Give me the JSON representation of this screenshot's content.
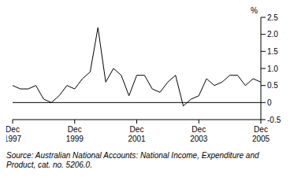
{
  "chart_data": {
    "type": "line",
    "y_label": "%",
    "source": "Source: Australian National Accounts: National Income, Expenditure and Product, cat. no. 5206.0.",
    "categories": [
      "Dec 1997",
      null,
      null,
      null,
      null,
      null,
      null,
      null,
      "Dec 1999",
      null,
      null,
      null,
      null,
      null,
      null,
      null,
      "Dec 2001",
      null,
      null,
      null,
      null,
      null,
      null,
      null,
      "Dec 2003",
      null,
      null,
      null,
      null,
      null,
      null,
      null,
      "Dec 2005"
    ],
    "values": [
      0.5,
      0.4,
      0.4,
      0.5,
      0.1,
      0.0,
      0.2,
      0.5,
      0.4,
      0.7,
      0.9,
      2.2,
      0.6,
      1.0,
      0.8,
      0.2,
      0.8,
      0.8,
      0.4,
      0.3,
      0.6,
      0.8,
      -0.1,
      0.1,
      0.2,
      0.7,
      0.5,
      0.6,
      0.8,
      0.8,
      0.5,
      0.7,
      0.6
    ],
    "color": "#000000",
    "ylim": [
      -0.5,
      2.5
    ],
    "yticks": [
      -0.5,
      0,
      0.5,
      {
        "value": 1,
        "label": "1.0"
      },
      1.5,
      {
        "value": 2,
        "label": "2.0"
      },
      2.5
    ],
    "grid": false
  }
}
